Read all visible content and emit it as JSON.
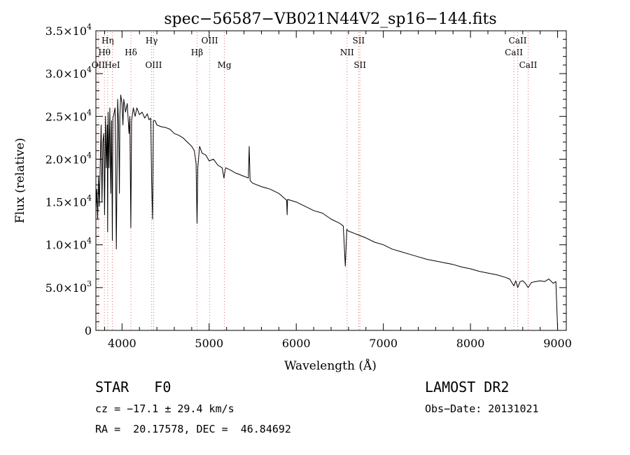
{
  "chart_data": {
    "type": "line",
    "title": "spec−56587−VB021N44V2_sp16−144.fits",
    "xlabel": "Wavelength (Å)",
    "ylabel": "Flux (relative)",
    "xlim": [
      3700,
      9100
    ],
    "ylim": [
      0,
      35000
    ],
    "grid": false,
    "x_ticks": [
      4000,
      5000,
      6000,
      7000,
      8000,
      9000
    ],
    "x_tick_labels": [
      "4000",
      "5000",
      "6000",
      "7000",
      "8000",
      "9000"
    ],
    "y_ticks": [
      {
        "value": 0,
        "mant": "0",
        "exp": ""
      },
      {
        "value": 5000,
        "mant": "5.0×10",
        "exp": "3"
      },
      {
        "value": 10000,
        "mant": "1.0×10",
        "exp": "4"
      },
      {
        "value": 15000,
        "mant": "1.5×10",
        "exp": "4"
      },
      {
        "value": 20000,
        "mant": "2.0×10",
        "exp": "4"
      },
      {
        "value": 25000,
        "mant": "2.5×10",
        "exp": "4"
      },
      {
        "value": 30000,
        "mant": "3.0×10",
        "exp": "4"
      },
      {
        "value": 35000,
        "mant": "3.5×10",
        "exp": "4"
      }
    ],
    "series": [
      {
        "color": "#000000",
        "x": [
          3700,
          3710,
          3720,
          3730,
          3740,
          3750,
          3760,
          3770,
          3780,
          3790,
          3800,
          3810,
          3820,
          3830,
          3835,
          3840,
          3850,
          3860,
          3870,
          3880,
          3889,
          3895,
          3905,
          3920,
          3935,
          3950,
          3960,
          3970,
          3975,
          3985,
          4000,
          4010,
          4020,
          4040,
          4060,
          4080,
          4090,
          4101,
          4110,
          4130,
          4150,
          4170,
          4200,
          4230,
          4260,
          4290,
          4310,
          4330,
          4340,
          4350,
          4360,
          4380,
          4400,
          4450,
          4500,
          4550,
          4600,
          4650,
          4700,
          4750,
          4800,
          4830,
          4850,
          4861,
          4870,
          4890,
          4920,
          4960,
          5000,
          5050,
          5100,
          5150,
          5170,
          5180,
          5190,
          5250,
          5300,
          5350,
          5400,
          5450,
          5460,
          5470,
          5500,
          5600,
          5700,
          5800,
          5890,
          5895,
          5900,
          6000,
          6100,
          6200,
          6300,
          6400,
          6500,
          6540,
          6563,
          6580,
          6600,
          6700,
          6800,
          6900,
          7000,
          7100,
          7200,
          7300,
          7400,
          7500,
          7600,
          7700,
          7800,
          7900,
          8000,
          8100,
          8200,
          8300,
          8400,
          8450,
          8498,
          8520,
          8542,
          8570,
          8600,
          8630,
          8662,
          8700,
          8750,
          8800,
          8850,
          8900,
          8950,
          8980,
          9000
        ],
        "y": [
          14000,
          16500,
          13000,
          18000,
          14500,
          19500,
          24000,
          15000,
          22000,
          23000,
          13500,
          25000,
          19000,
          24000,
          11500,
          25500,
          19000,
          26000,
          16000,
          24500,
          10500,
          24800,
          25200,
          26000,
          9500,
          27000,
          24000,
          16000,
          25000,
          27500,
          26500,
          24000,
          27000,
          25500,
          26500,
          23000,
          25000,
          12000,
          24500,
          26000,
          25000,
          26000,
          25200,
          25500,
          24800,
          25300,
          24600,
          24800,
          17500,
          13000,
          24500,
          24500,
          24000,
          23800,
          23700,
          23500,
          23000,
          22800,
          22500,
          22000,
          21500,
          21000,
          19500,
          12500,
          19000,
          21500,
          20700,
          20500,
          19800,
          20000,
          19300,
          19000,
          17800,
          18500,
          19000,
          18700,
          18400,
          18200,
          18000,
          17800,
          21500,
          17500,
          17200,
          16800,
          16500,
          16000,
          15200,
          13500,
          15300,
          15000,
          14500,
          14000,
          13700,
          13000,
          12500,
          12200,
          7500,
          11800,
          11600,
          11200,
          10800,
          10300,
          10000,
          9500,
          9200,
          8900,
          8600,
          8300,
          8100,
          7900,
          7700,
          7400,
          7200,
          6900,
          6700,
          6500,
          6200,
          6000,
          5200,
          5800,
          5000,
          5700,
          5800,
          5500,
          5000,
          5600,
          5700,
          5800,
          5700,
          6000,
          5500,
          5700,
          200
        ]
      }
    ],
    "annotations": [
      {
        "label": "OII",
        "wavelength": 3727,
        "row": 3,
        "align": "middle"
      },
      {
        "label": "Hθ",
        "wavelength": 3798,
        "row": 2,
        "align": "middle"
      },
      {
        "label": "Hη",
        "wavelength": 3835,
        "row": 1,
        "align": "middle"
      },
      {
        "label": "HeI",
        "wavelength": 3889,
        "row": 3,
        "align": "middle"
      },
      {
        "label": "Hδ",
        "wavelength": 4102,
        "row": 2,
        "align": "middle"
      },
      {
        "label": "Hγ",
        "wavelength": 4340,
        "row": 1,
        "align": "middle"
      },
      {
        "label": "OIII",
        "wavelength": 4363,
        "row": 3,
        "align": "middle"
      },
      {
        "label": "Hβ",
        "wavelength": 4861,
        "row": 2,
        "align": "middle"
      },
      {
        "label": "OIII",
        "wavelength": 5007,
        "row": 1,
        "align": "middle"
      },
      {
        "label": "Mg",
        "wavelength": 5175,
        "row": 3,
        "align": "middle"
      },
      {
        "label": "NII",
        "wavelength": 6583,
        "row": 2,
        "align": "middle"
      },
      {
        "label": "SII",
        "wavelength": 6716,
        "row": 1,
        "align": "middle"
      },
      {
        "label": "SII",
        "wavelength": 6731,
        "row": 3,
        "align": "middle"
      },
      {
        "label": "CaII",
        "wavelength": 8498,
        "row": 2,
        "align": "middle"
      },
      {
        "label": "CaII",
        "wavelength": 8542,
        "row": 1,
        "align": "middle"
      },
      {
        "label": "CaII",
        "wavelength": 8662,
        "row": 3,
        "align": "middle"
      }
    ],
    "annotation_line_color": "#e07070"
  },
  "info": {
    "class_type": "STAR",
    "subclass": "F0",
    "survey": "LAMOST DR2",
    "cz": "cz = −17.1 ± 29.4 km/s",
    "obs_date": "Obs−Date: 20131021",
    "coords": "RA =  20.17578, DEC =  46.84692"
  }
}
